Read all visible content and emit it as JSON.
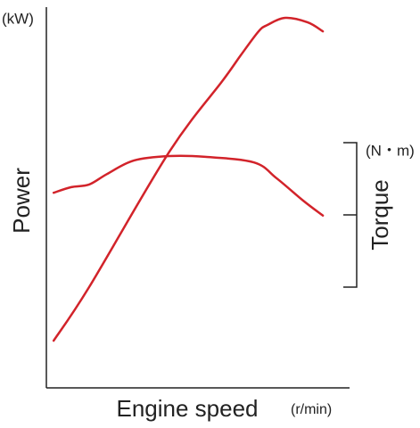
{
  "chart_data": {
    "type": "line",
    "y_unit": "(kW)",
    "y_label": "Power",
    "y2_unit": "(N・m)",
    "y2_label": "Torque",
    "x_label": "Engine speed",
    "x_unit": "(r/min)",
    "xlim": [
      0,
      100
    ],
    "ylim": [
      0,
      100
    ],
    "y2lim": [
      0,
      100
    ],
    "series": [
      {
        "name": "Power",
        "color": "#d2232a",
        "x": [
          2.4,
          14.1,
          40.6,
          58.2,
          64.1,
          70,
          72.9,
          78.8,
          86.2,
          91.2
        ],
        "values": [
          12.6,
          26.9,
          63.1,
          82.1,
          88.8,
          95.2,
          96.9,
          98.8,
          97.6,
          95.2
        ]
      },
      {
        "name": "Torque",
        "color": "#d2232a",
        "axis": "y2",
        "x": [
          2.4,
          8.2,
          14.1,
          20,
          28.8,
          40.6,
          52.4,
          68.5,
          75.9,
          84.7,
          91.2
        ],
        "values": [
          52.1,
          53.6,
          54.3,
          57.1,
          60.7,
          61.9,
          61.7,
          60.2,
          56,
          50,
          46
        ]
      }
    ]
  }
}
